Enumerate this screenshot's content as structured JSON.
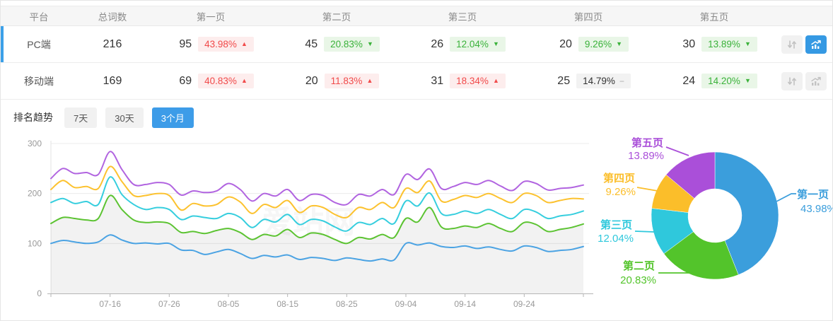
{
  "table": {
    "headers": [
      "平台",
      "总词数",
      "第一页",
      "第二页",
      "第三页",
      "第四页",
      "第五页"
    ],
    "rows": [
      {
        "platform": "PC端",
        "total": "216",
        "selected": true,
        "pages": [
          {
            "count": "95",
            "pct": "43.98%",
            "dir": "up"
          },
          {
            "count": "45",
            "pct": "20.83%",
            "dir": "down"
          },
          {
            "count": "26",
            "pct": "12.04%",
            "dir": "down"
          },
          {
            "count": "20",
            "pct": "9.26%",
            "dir": "down"
          },
          {
            "count": "30",
            "pct": "13.89%",
            "dir": "down"
          }
        ]
      },
      {
        "platform": "移动端",
        "total": "169",
        "selected": false,
        "pages": [
          {
            "count": "69",
            "pct": "40.83%",
            "dir": "up"
          },
          {
            "count": "20",
            "pct": "11.83%",
            "dir": "up"
          },
          {
            "count": "31",
            "pct": "18.34%",
            "dir": "up"
          },
          {
            "count": "25",
            "pct": "14.79%",
            "dir": "flat"
          },
          {
            "count": "24",
            "pct": "14.20%",
            "dir": "down"
          }
        ]
      }
    ]
  },
  "trend": {
    "title": "排名趋势",
    "tabs": [
      {
        "label": "7天",
        "active": false
      },
      {
        "label": "30天",
        "active": false
      },
      {
        "label": "3个月",
        "active": true
      }
    ]
  },
  "colors": {
    "accent": "#3ba0e8",
    "up_text": "#f14a4a",
    "up_bg": "#fdeded",
    "down_text": "#3ab23a",
    "down_bg": "#e9f6e7",
    "flat_text": "#333333",
    "flat_bg": "#f2f2f2"
  },
  "chart_data": [
    {
      "type": "line",
      "title": "排名趋势 (3个月, 堆叠总词数)",
      "stacked": true,
      "watermark": "爱站网",
      "ylim": [
        0,
        300
      ],
      "yticks": [
        0,
        100,
        200,
        300
      ],
      "x_range_days": [
        0,
        90
      ],
      "sample_step_days": 2,
      "xticks": [
        {
          "label": "07-16",
          "day": 10
        },
        {
          "label": "07-26",
          "day": 20
        },
        {
          "label": "08-05",
          "day": 30
        },
        {
          "label": "08-15",
          "day": 40
        },
        {
          "label": "08-25",
          "day": 50
        },
        {
          "label": "09-04",
          "day": 60
        },
        {
          "label": "09-14",
          "day": 70
        },
        {
          "label": "09-24",
          "day": 80
        }
      ],
      "series": [
        {
          "name": "第一页",
          "color": "#4ba3e3",
          "values": [
            100,
            106,
            103,
            100,
            103,
            117,
            107,
            100,
            101,
            99,
            100,
            87,
            86,
            78,
            83,
            88,
            80,
            70,
            76,
            73,
            77,
            68,
            72,
            70,
            66,
            71,
            68,
            65,
            69,
            67,
            100,
            97,
            101,
            94,
            92,
            95,
            90,
            93,
            88,
            85,
            95,
            92,
            84,
            86,
            88,
            94
          ]
        },
        {
          "name": "第二页",
          "color": "#5cc332",
          "area_fill": true,
          "values": [
            140,
            152,
            150,
            147,
            150,
            196,
            168,
            147,
            142,
            143,
            140,
            122,
            124,
            120,
            126,
            130,
            122,
            108,
            118,
            115,
            128,
            112,
            121,
            118,
            108,
            100,
            112,
            109,
            118,
            112,
            150,
            143,
            172,
            133,
            130,
            135,
            132,
            140,
            130,
            124,
            142,
            138,
            124,
            128,
            132,
            139
          ]
        },
        {
          "name": "第三页",
          "color": "#36cede",
          "values": [
            182,
            190,
            180,
            184,
            178,
            233,
            198,
            178,
            168,
            172,
            168,
            148,
            155,
            152,
            150,
            160,
            152,
            132,
            148,
            143,
            158,
            138,
            148,
            145,
            133,
            125,
            142,
            138,
            150,
            140,
            185,
            175,
            201,
            160,
            158,
            165,
            160,
            168,
            158,
            150,
            168,
            163,
            150,
            155,
            158,
            165
          ]
        },
        {
          "name": "第四页",
          "color": "#fcc22f",
          "values": [
            208,
            226,
            212,
            214,
            210,
            254,
            224,
            196,
            196,
            200,
            196,
            167,
            180,
            175,
            178,
            193,
            183,
            160,
            178,
            172,
            186,
            162,
            175,
            172,
            158,
            152,
            172,
            168,
            182,
            172,
            210,
            202,
            225,
            185,
            188,
            196,
            192,
            200,
            190,
            182,
            200,
            196,
            182,
            186,
            190,
            189
          ]
        },
        {
          "name": "第五页",
          "color": "#b164e0",
          "values": [
            230,
            250,
            240,
            242,
            238,
            284,
            248,
            218,
            218,
            222,
            218,
            197,
            205,
            202,
            205,
            220,
            208,
            185,
            200,
            195,
            208,
            186,
            198,
            196,
            182,
            178,
            198,
            195,
            208,
            198,
            238,
            228,
            249,
            210,
            214,
            222,
            218,
            226,
            215,
            206,
            224,
            220,
            207,
            210,
            212,
            217
          ]
        }
      ]
    },
    {
      "type": "pie",
      "donut": true,
      "labels": [
        "第一页",
        "第二页",
        "第三页",
        "第四页",
        "第五页"
      ],
      "values": [
        43.98,
        20.83,
        12.04,
        9.26,
        13.89
      ],
      "value_labels": [
        "43.98%",
        "20.83%",
        "12.04%",
        "9.26%",
        "13.89%"
      ],
      "colors": [
        "#3b9edc",
        "#53c42b",
        "#2fc8dc",
        "#fbbe2a",
        "#aa4fd9"
      ]
    }
  ]
}
